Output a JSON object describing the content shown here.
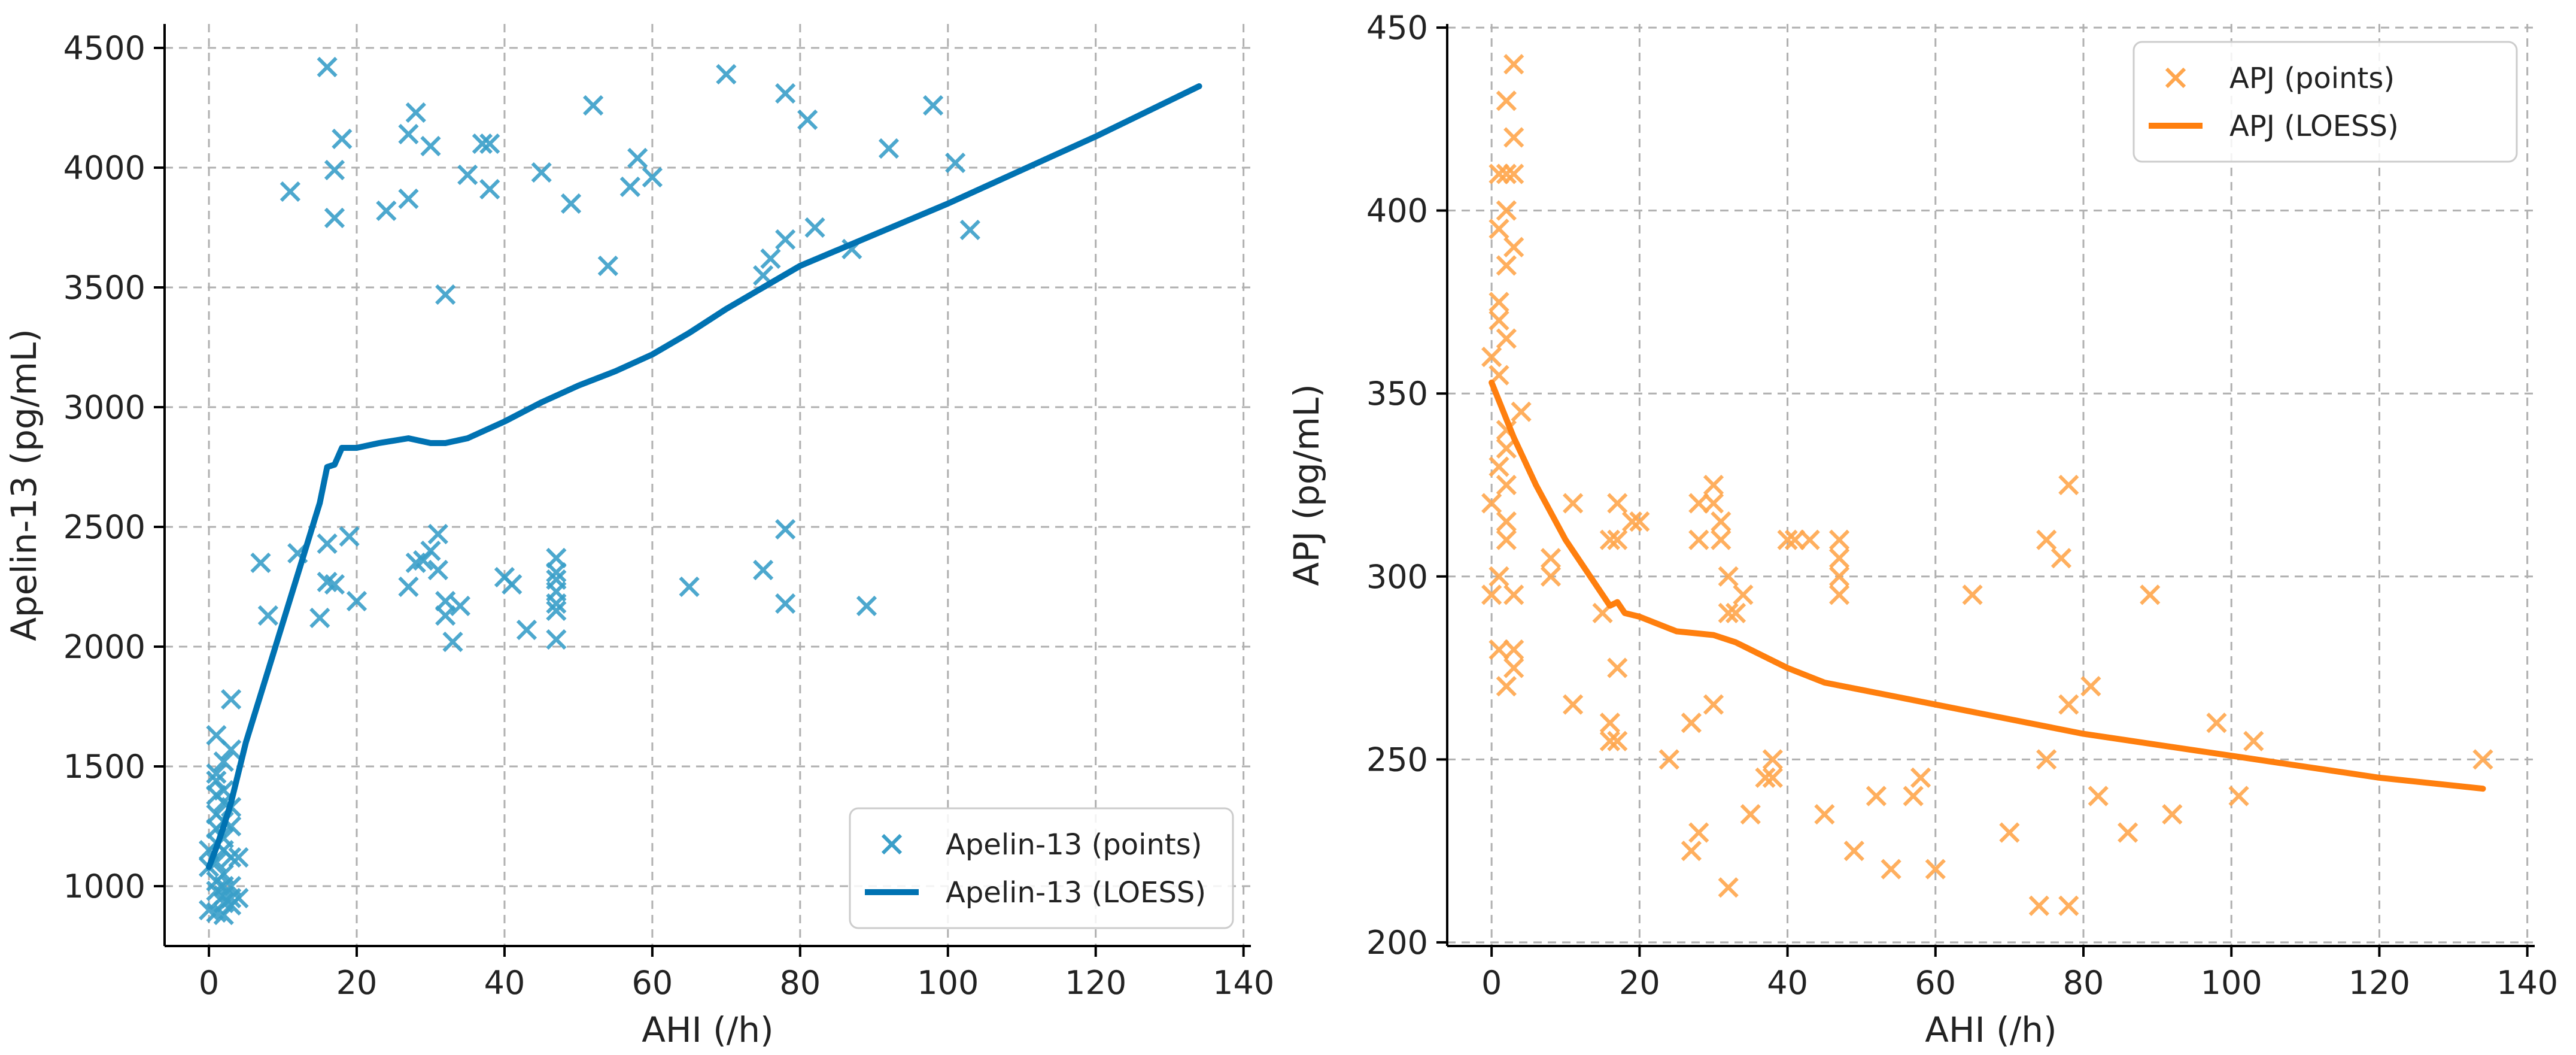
{
  "chart_data": [
    {
      "type": "scatter",
      "xlabel": "AHI (/h)",
      "ylabel": "Apelin-13 (pg/mL)",
      "xlim": [
        -6,
        141
      ],
      "ylim": [
        750,
        4600
      ],
      "xticks": [
        0,
        20,
        40,
        60,
        80,
        100,
        120,
        140
      ],
      "yticks": [
        1000,
        1500,
        2000,
        2500,
        3000,
        3500,
        4000,
        4500
      ],
      "grid": true,
      "legend_position": "lower-right",
      "series": [
        {
          "name": "Apelin-13 (points)",
          "kind": "scatter",
          "marker": "x",
          "color": "#3a9fc9",
          "points": [
            [
              16,
              4420
            ],
            [
              70,
              4390
            ],
            [
              78,
              4310
            ],
            [
              28,
              4230
            ],
            [
              52,
              4260
            ],
            [
              81,
              4200
            ],
            [
              98,
              4260
            ],
            [
              27,
              4140
            ],
            [
              18,
              4120
            ],
            [
              30,
              4090
            ],
            [
              37,
              4100
            ],
            [
              38,
              4100
            ],
            [
              17,
              3990
            ],
            [
              58,
              4040
            ],
            [
              35,
              3970
            ],
            [
              45,
              3980
            ],
            [
              60,
              3960
            ],
            [
              92,
              4080
            ],
            [
              101,
              4020
            ],
            [
              11,
              3900
            ],
            [
              38,
              3910
            ],
            [
              57,
              3920
            ],
            [
              27,
              3870
            ],
            [
              24,
              3820
            ],
            [
              49,
              3850
            ],
            [
              17,
              3790
            ],
            [
              82,
              3750
            ],
            [
              103,
              3740
            ],
            [
              78,
              3700
            ],
            [
              87,
              3660
            ],
            [
              76,
              3620
            ],
            [
              54,
              3590
            ],
            [
              75,
              3550
            ],
            [
              32,
              3470
            ],
            [
              78,
              2490
            ],
            [
              16,
              2430
            ],
            [
              19,
              2460
            ],
            [
              31,
              2470
            ],
            [
              12,
              2390
            ],
            [
              30,
              2400
            ],
            [
              29,
              2360
            ],
            [
              7,
              2350
            ],
            [
              28,
              2350
            ],
            [
              47,
              2370
            ],
            [
              31,
              2320
            ],
            [
              47,
              2310
            ],
            [
              75,
              2320
            ],
            [
              17,
              2260
            ],
            [
              40,
              2290
            ],
            [
              47,
              2280
            ],
            [
              16,
              2270
            ],
            [
              27,
              2250
            ],
            [
              41,
              2260
            ],
            [
              65,
              2250
            ],
            [
              47,
              2230
            ],
            [
              20,
              2190
            ],
            [
              32,
              2190
            ],
            [
              34,
              2170
            ],
            [
              47,
              2180
            ],
            [
              78,
              2180
            ],
            [
              89,
              2170
            ],
            [
              15,
              2120
            ],
            [
              8,
              2130
            ],
            [
              32,
              2130
            ],
            [
              47,
              2150
            ],
            [
              43,
              2070
            ],
            [
              33,
              2020
            ],
            [
              47,
              2030
            ],
            [
              3,
              1780
            ],
            [
              1,
              1630
            ],
            [
              3,
              1570
            ],
            [
              2,
              1520
            ],
            [
              1,
              1470
            ],
            [
              1,
              1440
            ],
            [
              2,
              1400
            ],
            [
              1,
              1380
            ],
            [
              2,
              1350
            ],
            [
              3,
              1330
            ],
            [
              1,
              1300
            ],
            [
              2,
              1270
            ],
            [
              3,
              1250
            ],
            [
              1,
              1240
            ],
            [
              2,
              1200
            ],
            [
              1,
              1180
            ],
            [
              0,
              1150
            ],
            [
              2,
              1150
            ],
            [
              3,
              1120
            ],
            [
              4,
              1120
            ],
            [
              1,
              1100
            ],
            [
              0,
              1080
            ],
            [
              2,
              1050
            ],
            [
              1,
              1020
            ],
            [
              2,
              1000
            ],
            [
              3,
              1000
            ],
            [
              1,
              980
            ],
            [
              2,
              960
            ],
            [
              3,
              950
            ],
            [
              4,
              950
            ],
            [
              2,
              930
            ],
            [
              0,
              900
            ],
            [
              1,
              890
            ],
            [
              2,
              880
            ],
            [
              3,
              920
            ]
          ]
        },
        {
          "name": "Apelin-13 (LOESS)",
          "kind": "line",
          "color": "#0072b2",
          "points": [
            [
              0,
              1080
            ],
            [
              1,
              1160
            ],
            [
              2,
              1250
            ],
            [
              3,
              1350
            ],
            [
              5,
              1600
            ],
            [
              8,
              1900
            ],
            [
              11,
              2200
            ],
            [
              13,
              2400
            ],
            [
              15,
              2600
            ],
            [
              16,
              2750
            ],
            [
              17,
              2760
            ],
            [
              18,
              2830
            ],
            [
              20,
              2830
            ],
            [
              23,
              2850
            ],
            [
              27,
              2870
            ],
            [
              30,
              2850
            ],
            [
              32,
              2850
            ],
            [
              35,
              2870
            ],
            [
              40,
              2940
            ],
            [
              45,
              3020
            ],
            [
              50,
              3090
            ],
            [
              55,
              3150
            ],
            [
              60,
              3220
            ],
            [
              65,
              3310
            ],
            [
              70,
              3410
            ],
            [
              75,
              3500
            ],
            [
              80,
              3590
            ],
            [
              90,
              3720
            ],
            [
              100,
              3850
            ],
            [
              110,
              3990
            ],
            [
              120,
              4130
            ],
            [
              134,
              4340
            ]
          ]
        }
      ]
    },
    {
      "type": "scatter",
      "xlabel": "AHI (/h)",
      "ylabel": "APJ (pg/mL)",
      "xlim": [
        -6,
        141
      ],
      "ylim": [
        199,
        451
      ],
      "xticks": [
        0,
        20,
        40,
        60,
        80,
        100,
        120,
        140
      ],
      "yticks": [
        200,
        250,
        300,
        350,
        400,
        450
      ],
      "grid": true,
      "legend_position": "upper-right",
      "series": [
        {
          "name": "APJ (points)",
          "kind": "scatter",
          "marker": "x",
          "color": "#ffa64d",
          "points": [
            [
              3,
              440
            ],
            [
              2,
              430
            ],
            [
              3,
              420
            ],
            [
              1,
              410
            ],
            [
              2,
              410
            ],
            [
              3,
              410
            ],
            [
              2,
              400
            ],
            [
              1,
              395
            ],
            [
              3,
              390
            ],
            [
              2,
              385
            ],
            [
              1,
              375
            ],
            [
              1,
              370
            ],
            [
              2,
              365
            ],
            [
              0,
              360
            ],
            [
              1,
              355
            ],
            [
              4,
              345
            ],
            [
              2,
              340
            ],
            [
              2,
              335
            ],
            [
              1,
              330
            ],
            [
              2,
              325
            ],
            [
              0,
              320
            ],
            [
              2,
              315
            ],
            [
              2,
              310
            ],
            [
              1,
              300
            ],
            [
              0,
              295
            ],
            [
              3,
              295
            ],
            [
              3,
              280
            ],
            [
              1,
              280
            ],
            [
              3,
              275
            ],
            [
              2,
              270
            ],
            [
              8,
              305
            ],
            [
              8,
              300
            ],
            [
              11,
              320
            ],
            [
              15,
              290
            ],
            [
              16,
              310
            ],
            [
              17,
              320
            ],
            [
              17,
              310
            ],
            [
              19,
              315
            ],
            [
              20,
              315
            ],
            [
              17,
              275
            ],
            [
              11,
              265
            ],
            [
              16,
              260
            ],
            [
              17,
              255
            ],
            [
              16,
              255
            ],
            [
              24,
              250
            ],
            [
              28,
              320
            ],
            [
              28,
              310
            ],
            [
              30,
              325
            ],
            [
              30,
              320
            ],
            [
              31,
              315
            ],
            [
              31,
              310
            ],
            [
              32,
              300
            ],
            [
              34,
              295
            ],
            [
              33,
              290
            ],
            [
              32,
              290
            ],
            [
              27,
              260
            ],
            [
              30,
              265
            ],
            [
              27,
              225
            ],
            [
              28,
              230
            ],
            [
              32,
              215
            ],
            [
              35,
              235
            ],
            [
              37,
              245
            ],
            [
              38,
              250
            ],
            [
              38,
              245
            ],
            [
              40,
              310
            ],
            [
              41,
              310
            ],
            [
              43,
              310
            ],
            [
              47,
              310
            ],
            [
              47,
              305
            ],
            [
              47,
              300
            ],
            [
              47,
              295
            ],
            [
              45,
              235
            ],
            [
              49,
              225
            ],
            [
              52,
              240
            ],
            [
              54,
              220
            ],
            [
              57,
              240
            ],
            [
              58,
              245
            ],
            [
              60,
              220
            ],
            [
              65,
              295
            ],
            [
              70,
              230
            ],
            [
              74,
              210
            ],
            [
              75,
              250
            ],
            [
              75,
              310
            ],
            [
              77,
              305
            ],
            [
              78,
              325
            ],
            [
              78,
              265
            ],
            [
              78,
              210
            ],
            [
              81,
              270
            ],
            [
              82,
              240
            ],
            [
              86,
              230
            ],
            [
              89,
              295
            ],
            [
              92,
              235
            ],
            [
              98,
              260
            ],
            [
              101,
              240
            ],
            [
              103,
              255
            ],
            [
              134,
              250
            ]
          ]
        },
        {
          "name": "APJ (LOESS)",
          "kind": "line",
          "color": "#ff7f0e",
          "points": [
            [
              0,
              353
            ],
            [
              3,
              338
            ],
            [
              6,
              325
            ],
            [
              10,
              310
            ],
            [
              14,
              298
            ],
            [
              16,
              292
            ],
            [
              17,
              293
            ],
            [
              18,
              290
            ],
            [
              20,
              289
            ],
            [
              25,
              285
            ],
            [
              30,
              284
            ],
            [
              33,
              282
            ],
            [
              36,
              279
            ],
            [
              40,
              275
            ],
            [
              45,
              271
            ],
            [
              50,
              269
            ],
            [
              55,
              267
            ],
            [
              60,
              265
            ],
            [
              70,
              261
            ],
            [
              80,
              257
            ],
            [
              90,
              254
            ],
            [
              100,
              251
            ],
            [
              110,
              248
            ],
            [
              120,
              245
            ],
            [
              134,
              242
            ]
          ]
        }
      ]
    }
  ]
}
